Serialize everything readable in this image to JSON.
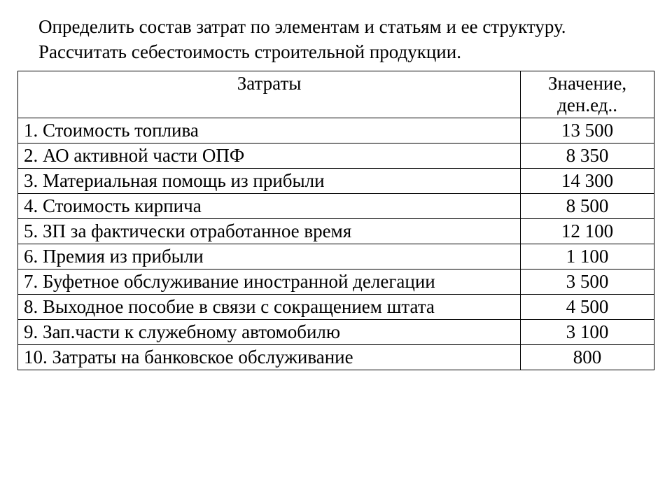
{
  "intro": {
    "line1": "Определить состав затрат по элементам и статьям и ее структуру.",
    "line2": "Рассчитать себестоимость строительной продукции."
  },
  "table": {
    "headers": {
      "label": "Затраты",
      "value": "Значение, ден.ед.."
    },
    "rows": [
      {
        "label": "1. Стоимость топлива",
        "value": "13 500"
      },
      {
        "label": "2. АО активной части ОПФ",
        "value": "8 350"
      },
      {
        "label": "3. Материальная помощь из прибыли",
        "value": "14 300"
      },
      {
        "label": "4. Стоимость кирпича",
        "value": "8 500"
      },
      {
        "label": "5. ЗП за фактически отработанное время",
        "value": "12 100"
      },
      {
        "label": "6. Премия из прибыли",
        "value": "1 100"
      },
      {
        "label": "7. Буфетное обслуживание иностранной делегации",
        "value": "3 500"
      },
      {
        "label": "8. Выходное пособие в связи с сокращением штата",
        "value": "4 500"
      },
      {
        "label": "9. Зап.части к служебному автомобилю",
        "value": "3 100"
      },
      {
        "label": "10. Затраты на банковское обслуживание",
        "value": "800"
      }
    ],
    "styling": {
      "border_color": "#000000",
      "border_width": 1.5,
      "font_family": "Times New Roman",
      "font_size": 27,
      "text_color": "#000000",
      "background_color": "#ffffff",
      "col_label_width_pct": 79,
      "col_value_width_pct": 21,
      "label_align": "left",
      "value_align": "center",
      "header_align": "center"
    }
  }
}
